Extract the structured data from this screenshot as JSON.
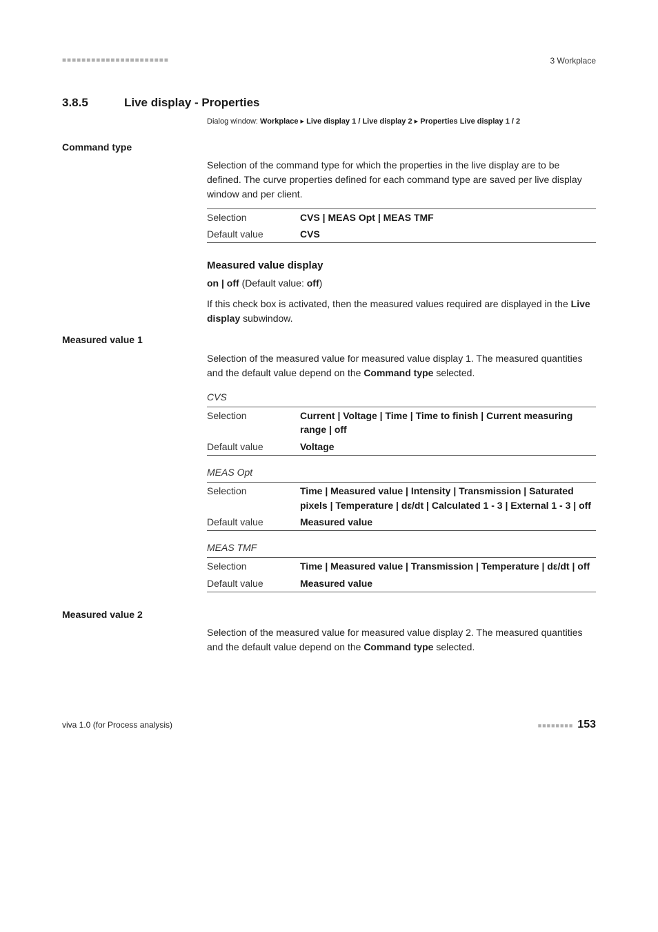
{
  "page": {
    "header_dots": "■■■■■■■■■■■■■■■■■■■■■■",
    "header_right": "3 Workplace",
    "footer_left": "viva 1.0 (for Process analysis)",
    "footer_dots": "■■■■■■■■",
    "footer_page": "153"
  },
  "section": {
    "number": "3.8.5",
    "title": "Live display - Properties",
    "dialog_prefix": "Dialog window: ",
    "dialog_b1": "Workplace",
    "dialog_sep1": " ▸ ",
    "dialog_b2": "Live display 1 / Live display 2",
    "dialog_sep2": " ▸ ",
    "dialog_b3": "Properties Live display 1 / 2"
  },
  "command_type": {
    "label": "Command type",
    "desc": "Selection of the command type for which the properties in the live display are to be defined. The curve properties defined for each command type are saved per live display window and per client.",
    "sel_key": "Selection",
    "sel_val": "CVS | MEAS Opt | MEAS TMF",
    "def_key": "Default value",
    "def_val": "CVS"
  },
  "mvd": {
    "heading": "Measured value display",
    "onoff_b1": "on | off",
    "onoff_mid": " (Default value: ",
    "onoff_b2": "off",
    "onoff_tail": ")",
    "desc_a": "If this check box is activated, then the measured values required are displayed in the ",
    "desc_b": "Live display",
    "desc_c": " subwindow."
  },
  "mv1": {
    "label": "Measured value 1",
    "desc_a": "Selection of the measured value for measured value display 1. The measured quantities and the default value depend on the ",
    "desc_b": "Command type",
    "desc_c": " selected.",
    "cvs_h": "CVS",
    "cvs_sel_key": "Selection",
    "cvs_sel_val": "Current | Voltage | Time | Time to finish | Current measuring range | off",
    "cvs_def_key": "Default value",
    "cvs_def_val": "Voltage",
    "opt_h": "MEAS Opt",
    "opt_sel_key": "Selection",
    "opt_sel_val": "Time | Measured value | Intensity | Transmission | Saturated pixels | Temperature | dε/dt |  Calculated 1 - 3 | External 1 - 3 | off",
    "opt_def_key": "Default value",
    "opt_def_val": "Measured value",
    "tmf_h": "MEAS TMF",
    "tmf_sel_key": "Selection",
    "tmf_sel_val": "Time | Measured value | Transmission | Temperature | dε/dt | off",
    "tmf_def_key": "Default value",
    "tmf_def_val": "Measured value"
  },
  "mv2": {
    "label": "Measured value 2",
    "desc_a": "Selection of the measured value for measured value display 2. The measured quantities and the default value depend on the ",
    "desc_b": "Command type",
    "desc_c": " selected."
  }
}
